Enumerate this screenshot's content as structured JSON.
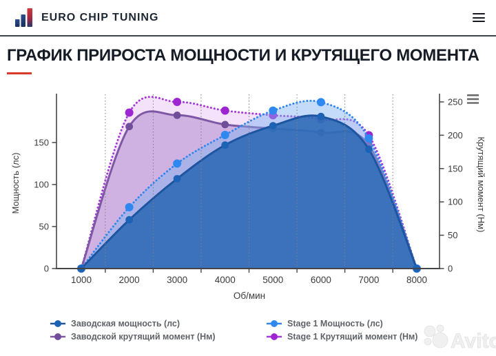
{
  "header": {
    "brand": "EURO CHIP TUNING",
    "logo_icon": "bar-chart-logo-icon",
    "menu_icon": "hamburger-icon"
  },
  "page": {
    "title": "ГРАФИК ПРИРОСТА МОЩНОСТИ И КРУТЯЩЕГО МОМЕНТА",
    "accent_color": "#d93a2b"
  },
  "watermark": {
    "text": "Avito"
  },
  "chart_data": {
    "type": "area",
    "x": [
      1000,
      2000,
      3000,
      4000,
      5000,
      6000,
      7000,
      8000
    ],
    "xlabel": "Об/мин",
    "ylabel_left": "Мощность (лс)",
    "ylabel_right": "Крутящий момент (Нм)",
    "ylim_left": [
      0,
      200
    ],
    "ylim_right": [
      0,
      250
    ],
    "yticks_left": [
      0,
      50,
      100,
      150
    ],
    "yticks_right": [
      0,
      50,
      100,
      150,
      200,
      250
    ],
    "grid": "vertical dotted lines at midpoints 1500-7500",
    "legend_position": "bottom",
    "menu_icon": "hamburger-icon",
    "draw_order": [
      3,
      1,
      2,
      0
    ],
    "series": [
      {
        "name": "Заводская мощность (лс)",
        "axis": "left",
        "style": "solid",
        "values": [
          0,
          58,
          107,
          147,
          170,
          181,
          142,
          0
        ],
        "line_color": "#1e55a0",
        "marker_color": "#1d63b5",
        "fill_color": "rgba(43,105,180,0.87)"
      },
      {
        "name": "Заводской крутящий момент (Нм)",
        "axis": "right",
        "style": "solid",
        "values": [
          0,
          213,
          230,
          216,
          210,
          204,
          185,
          0
        ],
        "line_color": "#7e58a4",
        "marker_color": "#704e99",
        "fill_color": "rgba(151,100,183,0.38)"
      },
      {
        "name": "Stage 1 Мощность (лс)",
        "axis": "left",
        "style": "dotted",
        "values": [
          0,
          73,
          125,
          159,
          188,
          198,
          155,
          0
        ],
        "line_color": "#2f87f0",
        "marker_color": "#2f87f0",
        "fill_color": "rgba(125,178,242,0.45)"
      },
      {
        "name": "Stage 1 Крутящий момент (Нм)",
        "axis": "right",
        "style": "dotted",
        "values": [
          0,
          234,
          250,
          237,
          230,
          224,
          200,
          0
        ],
        "line_color": "#a637da",
        "marker_color": "#9d26d2",
        "fill_color": "rgba(193,112,228,0.20)"
      }
    ]
  }
}
